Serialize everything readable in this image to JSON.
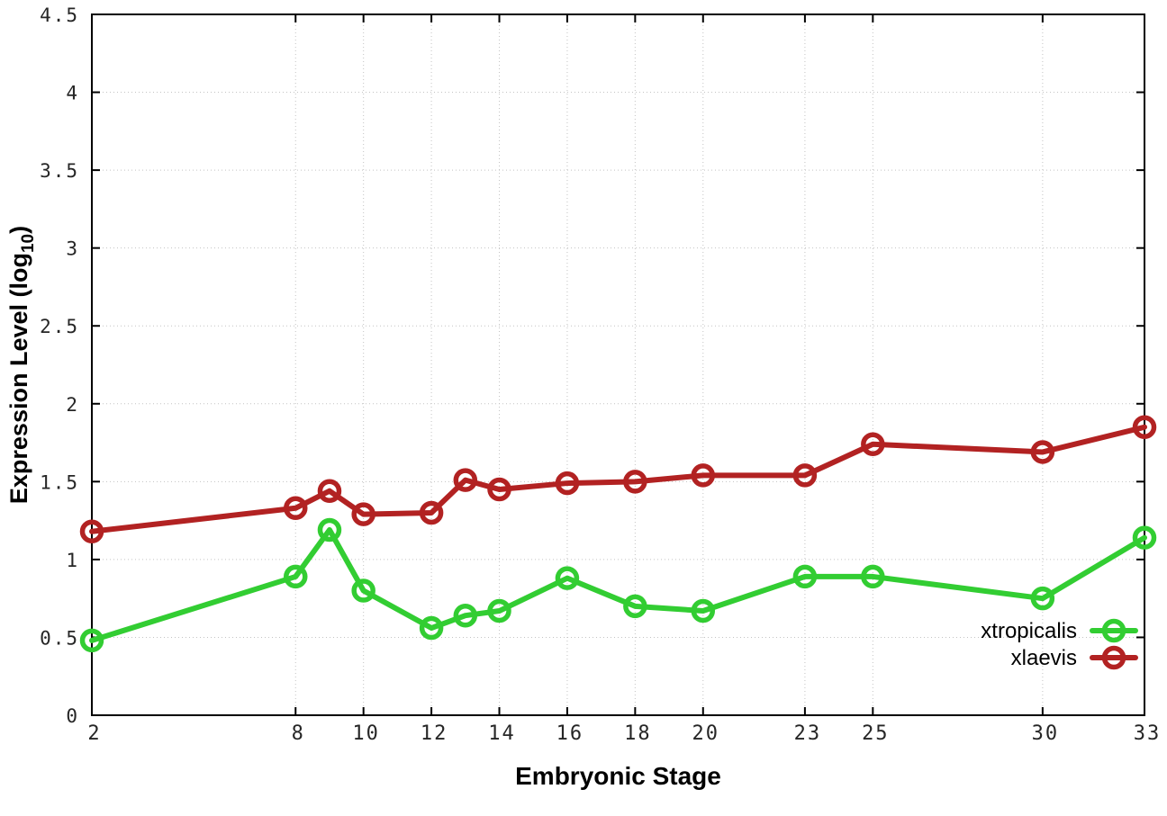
{
  "chart_data": {
    "type": "line",
    "title": "",
    "xlabel": "Embryonic Stage",
    "ylabel": {
      "pre": "Expression Level (log",
      "sub": "10",
      "post": ")"
    },
    "xlim": [
      2,
      33
    ],
    "ylim": [
      0,
      4.5
    ],
    "x_ticks": [
      2,
      8,
      10,
      12,
      14,
      16,
      18,
      20,
      23,
      25,
      30,
      33
    ],
    "y_ticks": [
      0,
      0.5,
      1,
      1.5,
      2,
      2.5,
      3,
      3.5,
      4,
      4.5
    ],
    "grid": true,
    "legend_position": "inside-bottom-right",
    "x": [
      2,
      8,
      9,
      10,
      12,
      13,
      14,
      16,
      18,
      20,
      23,
      25,
      30,
      33
    ],
    "series": [
      {
        "name": "xtropicalis",
        "color": "#32cd32",
        "values": [
          0.48,
          0.89,
          1.19,
          0.8,
          0.56,
          0.64,
          0.67,
          0.88,
          0.7,
          0.67,
          0.89,
          0.89,
          0.75,
          1.14
        ]
      },
      {
        "name": "xlaevis",
        "color": "#b22222",
        "values": [
          1.18,
          1.33,
          1.44,
          1.29,
          1.3,
          1.51,
          1.45,
          1.49,
          1.5,
          1.54,
          1.54,
          1.74,
          1.69,
          1.85
        ]
      }
    ]
  }
}
